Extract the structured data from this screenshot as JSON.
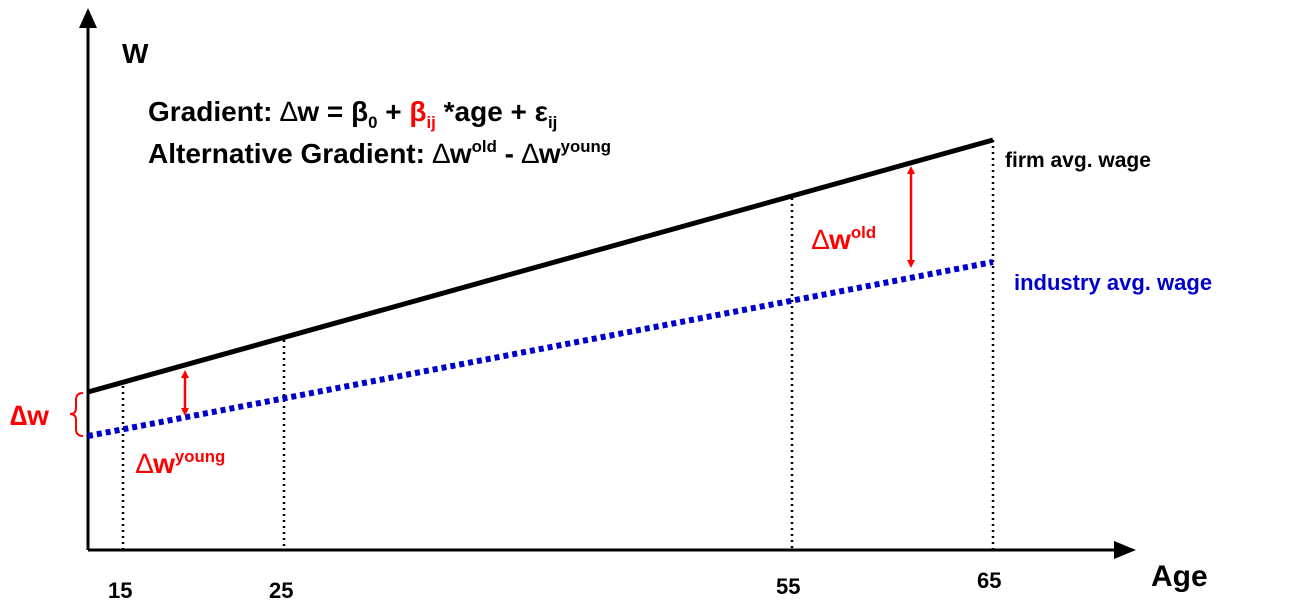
{
  "diagram": {
    "y_axis_label": "W",
    "x_axis_label": "Age",
    "x_ticks": [
      "15",
      "25",
      "55",
      "65"
    ],
    "formula": {
      "prefix": "Gradient: ",
      "delta": "∆",
      "w_eq": "w = β",
      "beta0_sub": "0",
      "plus": " + ",
      "beta_ij": "β",
      "beta_ij_sub": "ij",
      "age_part": " *age + ε",
      "eps_sub": "ij"
    },
    "alt_formula": {
      "prefix": "Alternative Gradient: ",
      "delta": "∆",
      "w1": "w",
      "old_sup": "old",
      "minus": " - ",
      "w2": "w",
      "young_sup": "young"
    },
    "firm_label": "firm avg. wage",
    "industry_label": "industry avg. wage",
    "delta_w_label": "∆w",
    "delta_w_old": {
      "delta": "∆",
      "w": "w",
      "sup": "old"
    },
    "delta_w_young": {
      "delta": "∆",
      "w": "w",
      "sup": "young"
    },
    "colors": {
      "firm_line": "#000000",
      "industry_line": "#0000cc",
      "annotation": "#ff0000"
    }
  }
}
